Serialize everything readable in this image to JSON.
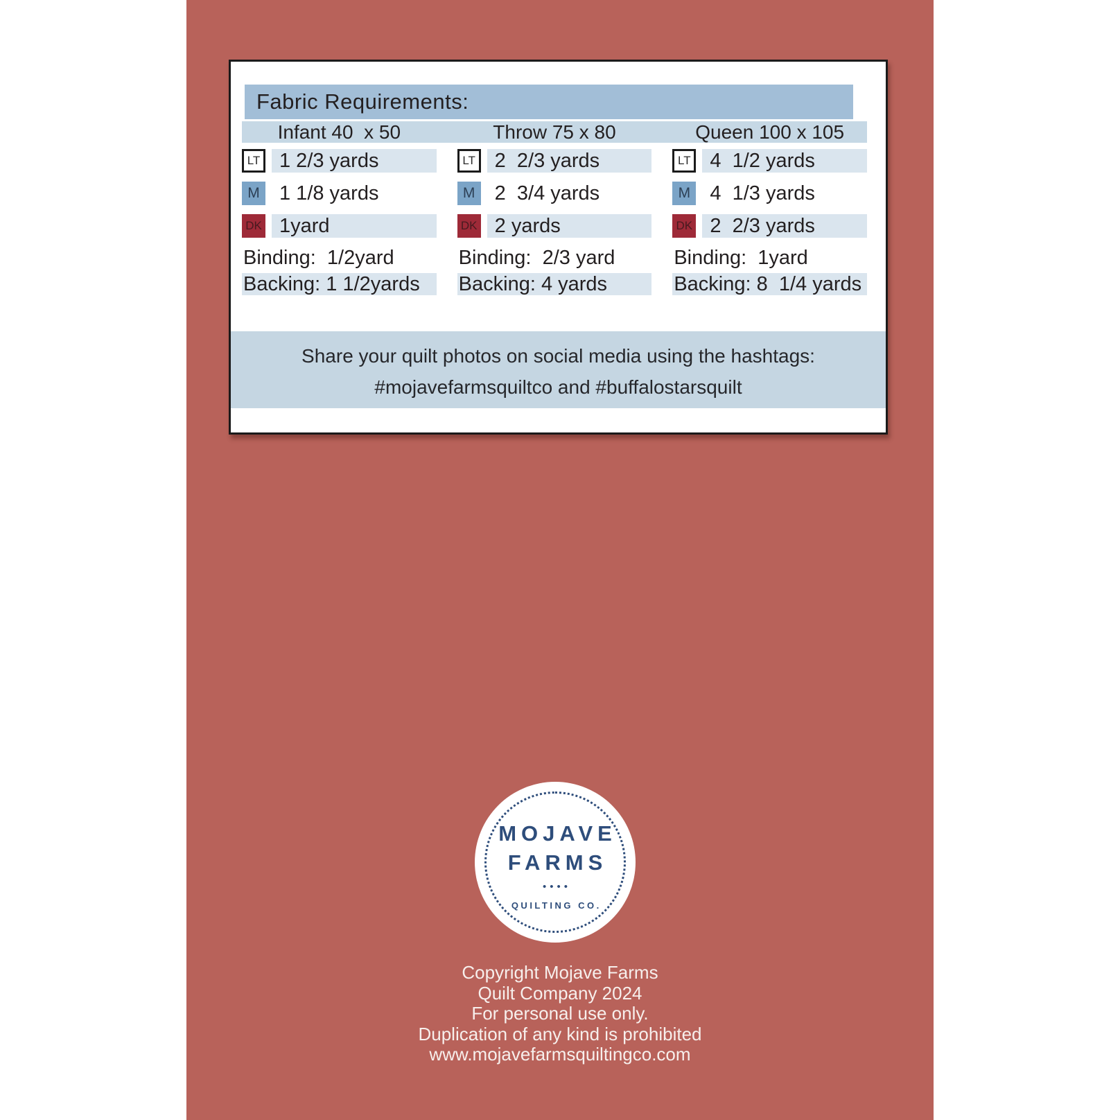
{
  "colors": {
    "background_red": "#b8625a",
    "title_bar_blue": "#a2bed7",
    "column_header_blue": "#c6d8e5",
    "value_cell_blue": "#dae5ee",
    "banner_blue": "#c5d6e2",
    "swatch_medium_blue": "#7ba4c7",
    "swatch_dark_red": "#9e2a38",
    "logo_navy": "#2e4d7b"
  },
  "fabric_requirements": {
    "title": "Fabric Requirements:",
    "swatch_labels": {
      "lt": "LT",
      "m": "M",
      "dk": "DK"
    },
    "columns": [
      {
        "size_label": "Infant 40  x 50",
        "lt": "1 2/3 yards",
        "m": "1 1/8 yards",
        "dk": "1yard",
        "binding": "Binding:  1/2yard",
        "backing": "Backing: 1 1/2yards"
      },
      {
        "size_label": "Throw 75 x 80",
        "lt": "2  2/3 yards",
        "m": "2  3/4 yards",
        "dk": "2 yards",
        "binding": "Binding:  2/3 yard",
        "backing": "Backing: 4 yards"
      },
      {
        "size_label": "Queen 100 x 105",
        "lt": "4  1/2 yards",
        "m": "4  1/3 yards",
        "dk": "2  2/3 yards",
        "binding": "Binding:  1yard",
        "backing": "Backing: 8  1/4 yards"
      }
    ]
  },
  "share_banner": {
    "line1": "Share your quilt photos on social media using the hashtags:",
    "line2": "#mojavefarmsquiltco and #buffalostarsquilt"
  },
  "logo": {
    "name_line1": "MOJAVE",
    "name_line2": "FARMS",
    "dots": "••••",
    "subtitle": "QUILTING CO."
  },
  "footer": {
    "lines": [
      "Copyright Mojave Farms",
      "Quilt Company 2024",
      "For personal use only.",
      "Duplication of any kind is prohibited",
      "www.mojavefarmsquiltingco.com"
    ]
  }
}
